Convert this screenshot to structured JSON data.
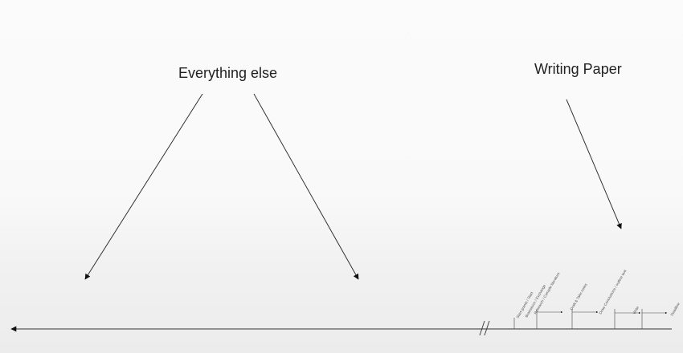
{
  "labels": {
    "everything_else": "Everything else",
    "writing_paper": "Writing Paper"
  },
  "timeline_stages": [
    "Start grants / Start",
    "Brainstorm / Exchange",
    "Research / Compile literature",
    "Draft & Take notes",
    "Draw Conclusions / outline text",
    "Write",
    "Deadline"
  ],
  "colors": {
    "line": "#222222",
    "text": "#222222"
  }
}
